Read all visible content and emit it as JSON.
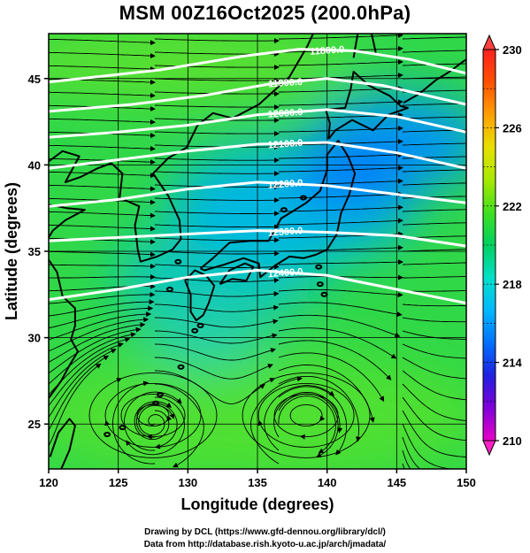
{
  "title": "MSM 00Z16Oct2025 (200.0hPa)",
  "credits": {
    "line1": "Drawing by DCL (https://www.gfd-dennou.org/library/dcl/)",
    "line2": "Data from http://database.rish.kyoto-u.ac.jp/arch/jmadata/"
  },
  "chart_data": {
    "type": "heatmap",
    "xlabel": "Longitude (degrees)",
    "ylabel": "Latitude  (degrees)",
    "xlim": [
      120,
      150
    ],
    "ylim": [
      22.4,
      47.6
    ],
    "xticks": [
      "120",
      "125",
      "130",
      "135",
      "140",
      "145",
      "150"
    ],
    "yticks": [
      "25",
      "30",
      "35",
      "40",
      "45"
    ],
    "xtick_values": [
      120,
      125,
      130,
      135,
      140,
      145,
      150
    ],
    "ytick_values": [
      25,
      30,
      35,
      40,
      45
    ],
    "grid": true,
    "colorbar": {
      "min": 210,
      "max": 230,
      "tick_values": [
        210,
        214,
        218,
        222,
        226,
        230
      ],
      "tick_labels": [
        "210",
        "214",
        "218",
        "222",
        "226",
        "230"
      ],
      "colors": [
        "#e800c8",
        "#8000d8",
        "#2020e0",
        "#0070ff",
        "#00b8ff",
        "#00e0c8",
        "#00d060",
        "#40e020",
        "#a8e800",
        "#e8e000",
        "#ffa000",
        "#ff5000",
        "#ff2020"
      ]
    },
    "contours": [
      {
        "label": "11800.0",
        "points": [
          [
            120,
            44.8
          ],
          [
            128,
            45.5
          ],
          [
            134,
            46.3
          ],
          [
            138,
            46.7
          ],
          [
            142,
            46.6
          ],
          [
            146,
            46.1
          ],
          [
            150,
            45.3
          ]
        ]
      },
      {
        "label": "11900.0",
        "points": [
          [
            120,
            43.1
          ],
          [
            126,
            43.5
          ],
          [
            131,
            44.0
          ],
          [
            136,
            44.7
          ],
          [
            140,
            45.0
          ],
          [
            144,
            44.6
          ],
          [
            150,
            43.5
          ]
        ]
      },
      {
        "label": "12000.0",
        "points": [
          [
            120,
            41.6
          ],
          [
            125,
            41.9
          ],
          [
            130,
            42.3
          ],
          [
            135,
            42.9
          ],
          [
            140,
            43.2
          ],
          [
            145,
            42.8
          ],
          [
            150,
            41.9
          ]
        ]
      },
      {
        "label": "12100.0",
        "points": [
          [
            120,
            39.8
          ],
          [
            124,
            40.2
          ],
          [
            130,
            40.8
          ],
          [
            135,
            41.2
          ],
          [
            140,
            41.3
          ],
          [
            145,
            40.7
          ],
          [
            150,
            39.8
          ]
        ]
      },
      {
        "label": "12200.0",
        "points": [
          [
            120,
            37.6
          ],
          [
            125,
            38.0
          ],
          [
            130,
            38.6
          ],
          [
            135,
            39.0
          ],
          [
            140,
            38.8
          ],
          [
            145,
            38.3
          ],
          [
            150,
            37.8
          ]
        ]
      },
      {
        "label": "12300.0",
        "points": [
          [
            120,
            35.6
          ],
          [
            125,
            35.8
          ],
          [
            130,
            36.0
          ],
          [
            135,
            36.2
          ],
          [
            140,
            36.1
          ],
          [
            145,
            35.9
          ],
          [
            150,
            35.3
          ]
        ]
      },
      {
        "label": "12400.0",
        "points": [
          [
            120,
            32.2
          ],
          [
            125,
            32.8
          ],
          [
            130,
            33.5
          ],
          [
            135,
            33.9
          ],
          [
            140,
            33.6
          ],
          [
            145,
            32.8
          ],
          [
            150,
            32.0
          ]
        ]
      }
    ],
    "anticyclones": [
      {
        "lon": 127.5,
        "lat": 25.5
      },
      {
        "lon": 138.5,
        "lat": 25.5
      }
    ]
  }
}
